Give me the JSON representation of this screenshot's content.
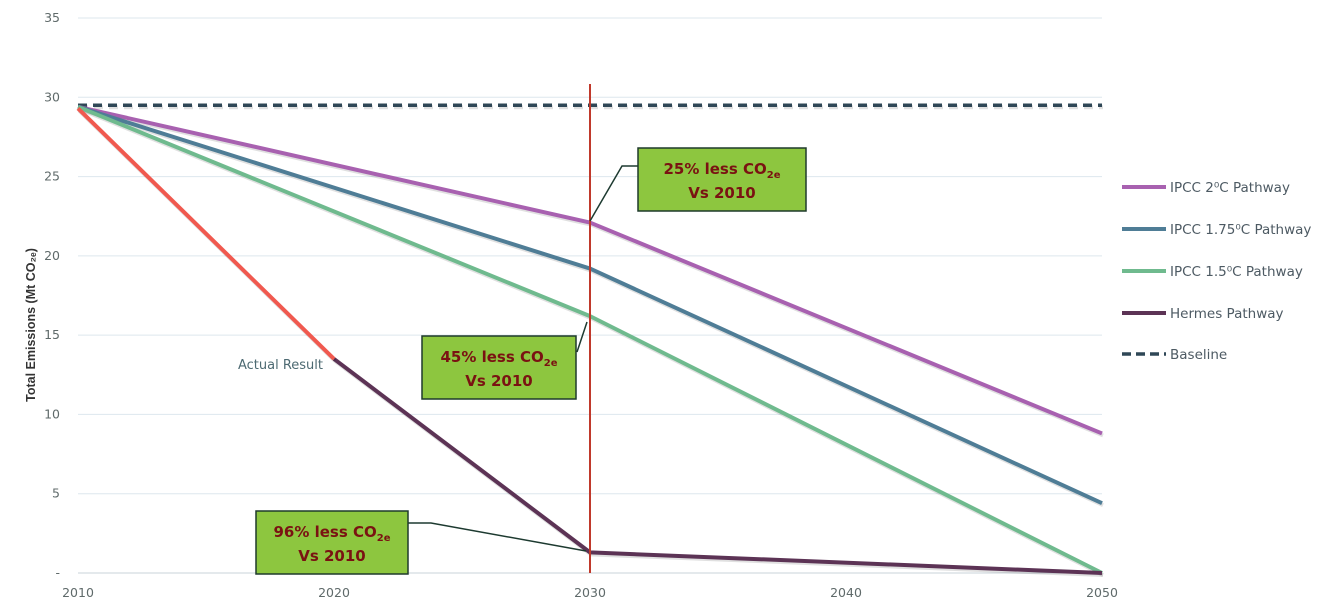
{
  "chart_data": {
    "type": "line",
    "title": "",
    "xlabel": "",
    "ylabel": "Total Emissions (Mt CO₂ₑ)",
    "xlim": [
      2010,
      2050
    ],
    "ylim": [
      0,
      35
    ],
    "x_ticks": [
      "2010",
      "2020",
      "2030",
      "2040",
      "2050"
    ],
    "y_ticks": [
      "-",
      "5",
      "10",
      "15",
      "20",
      "25",
      "30",
      "35"
    ],
    "grid": "horizontal",
    "legend_position": "right",
    "series": [
      {
        "name": "IPCC 2⁰C Pathway",
        "color": "#a861b0",
        "x": [
          2010,
          2030,
          2050
        ],
        "y": [
          29.4,
          22.1,
          8.8
        ]
      },
      {
        "name": "IPCC 1.75⁰C Pathway",
        "color": "#4f7d96",
        "x": [
          2010,
          2030,
          2050
        ],
        "y": [
          29.4,
          19.2,
          4.4
        ]
      },
      {
        "name": "IPCC 1.5⁰C Pathway",
        "color": "#6fba8e",
        "x": [
          2010,
          2030,
          2050
        ],
        "y": [
          29.4,
          16.2,
          0.0
        ]
      },
      {
        "name": "Hermes Pathway",
        "color": "#5c3355",
        "x": [
          2020,
          2030,
          2050
        ],
        "y": [
          13.5,
          1.3,
          0.0
        ]
      },
      {
        "name": "Baseline",
        "color": "#2f4756",
        "dashed": true,
        "x": [
          2010,
          2050
        ],
        "y": [
          29.5,
          29.5
        ]
      }
    ],
    "actual_result": {
      "label": "Actual Result",
      "color": "#f0594f",
      "x": [
        2010,
        2020
      ],
      "y": [
        29.3,
        13.5
      ]
    },
    "reference_line": {
      "x": 2030,
      "color": "#c0392b"
    },
    "annotations": [
      {
        "line1": "25% less CO",
        "sub": "2e",
        "line2": "Vs 2010"
      },
      {
        "line1": "45% less CO",
        "sub": "2e",
        "line2": "Vs 2010"
      },
      {
        "line1": "96% less CO",
        "sub": "2e",
        "line2": "Vs 2010"
      }
    ]
  }
}
